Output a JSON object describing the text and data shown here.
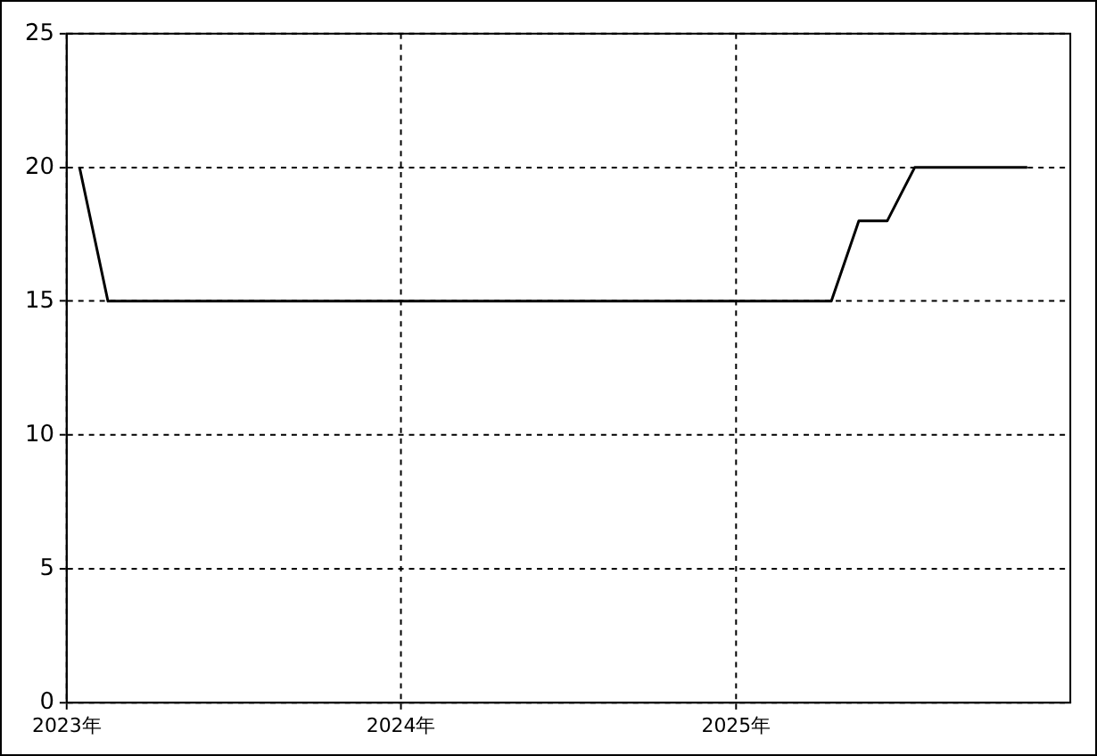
{
  "chart_data": {
    "type": "line",
    "x": [
      "2023-01-15",
      "2023-02-15",
      "2025-04-15",
      "2025-05-15",
      "2025-06-15",
      "2025-07-15",
      "2025-11-15"
    ],
    "series": [
      {
        "color": "#000000",
        "values": [
          20,
          15,
          15,
          18,
          18,
          20,
          20
        ]
      }
    ],
    "xlim": [
      "2023-01-01",
      "2026-01-01"
    ],
    "xticks": [
      {
        "value": "2023-01-01",
        "label": "2023年"
      },
      {
        "value": "2024-01-01",
        "label": "2024年"
      },
      {
        "value": "2025-01-01",
        "label": "2025年"
      }
    ],
    "ylim": [
      0,
      25
    ],
    "yticks": [
      0,
      5,
      10,
      15,
      20,
      25
    ],
    "grid": true,
    "legend": false,
    "marker": "none",
    "line_style": "solid"
  }
}
